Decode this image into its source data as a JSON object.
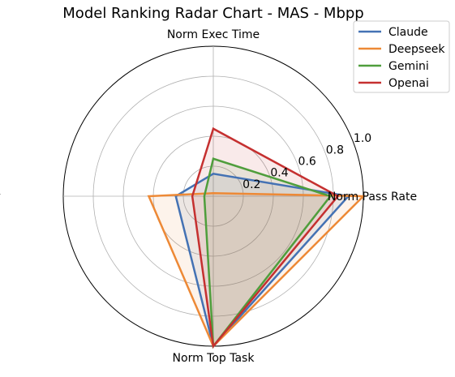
{
  "chart_data": {
    "type": "radar",
    "title": "Model Ranking Radar Chart - MAS - Mbpp",
    "axes": [
      "Norm Pass Rate",
      "Norm Exec Time",
      "Norm Stability",
      "Norm Top Task"
    ],
    "rlim": [
      0,
      1.0
    ],
    "r_ticks": [
      0.2,
      0.4,
      0.6,
      0.8,
      1.0
    ],
    "r_tick_labels": [
      "0.2",
      "0.4",
      "0.6",
      "0.8",
      "1.0"
    ],
    "grid": true,
    "legend_position": "top-right",
    "series": [
      {
        "name": "Claude",
        "color": "#4472b4",
        "values": [
          0.9,
          0.15,
          0.25,
          1.0
        ]
      },
      {
        "name": "Deepseek",
        "color": "#ed8936",
        "values": [
          1.0,
          0.02,
          0.43,
          1.0
        ]
      },
      {
        "name": "Gemini",
        "color": "#4f9e3c",
        "values": [
          0.78,
          0.25,
          0.06,
          1.0
        ]
      },
      {
        "name": "Openai",
        "color": "#c53030",
        "values": [
          0.83,
          0.45,
          0.14,
          1.0
        ]
      }
    ]
  }
}
